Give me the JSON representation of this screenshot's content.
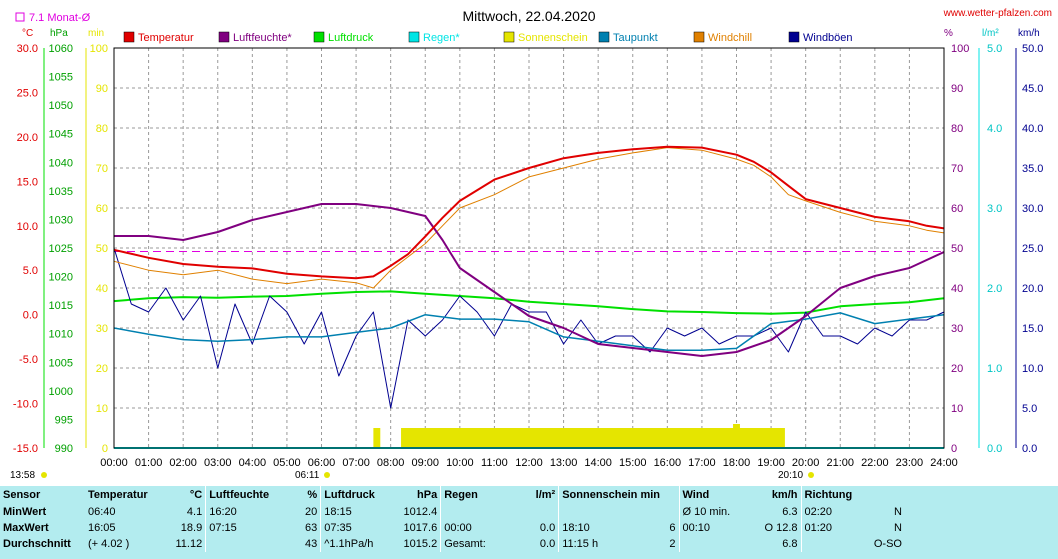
{
  "header": {
    "title": "Mittwoch, 22.04.2020",
    "site": "www.wetter-pfalzen.com",
    "month_avg_label": "7.1 Monat-Ø",
    "unit_temp": "°C",
    "unit_press": "hPa",
    "unit_sun": "min",
    "unit_hum": "%",
    "unit_rain": "l/m²",
    "unit_wind": "km/h"
  },
  "colors": {
    "temperature": "#e00000",
    "humidity": "#800080",
    "pressure": "#00e000",
    "rain": "#00e5e5",
    "sunshine": "#e5e500",
    "dewpoint": "#0080b0",
    "windchill": "#e08000",
    "gusts": "#000090",
    "month_avg": "#e000e0",
    "stats_bg": "#b3ecef"
  },
  "legend": [
    {
      "label": "Temperatur",
      "color": "#e00000"
    },
    {
      "label": "Luftfeuchte*",
      "color": "#800080"
    },
    {
      "label": "Luftdruck",
      "color": "#00e000"
    },
    {
      "label": "Regen*",
      "color": "#00e5e5"
    },
    {
      "label": "Sonnenschein",
      "color": "#e5e500"
    },
    {
      "label": "Taupunkt",
      "color": "#0080b0"
    },
    {
      "label": "Windchill",
      "color": "#e08000"
    },
    {
      "label": "Windböen",
      "color": "#000090"
    }
  ],
  "axes": {
    "temp_ticks": [
      "30.0",
      "25.0",
      "20.0",
      "15.0",
      "10.0",
      "5.0",
      "0.0",
      "-5.0",
      "-10.0",
      "-15.0"
    ],
    "press_ticks": [
      "1060",
      "1055",
      "1050",
      "1045",
      "1040",
      "1035",
      "1030",
      "1025",
      "1020",
      "1015",
      "1010",
      "1005",
      "1000",
      "995",
      "990"
    ],
    "sun_ticks": [
      "100",
      "90",
      "80",
      "70",
      "60",
      "50",
      "40",
      "30",
      "20",
      "10",
      "0"
    ],
    "hum_ticks": [
      "100",
      "90",
      "80",
      "70",
      "60",
      "50",
      "40",
      "30",
      "20",
      "10",
      "0"
    ],
    "rain_ticks": [
      "5.0",
      "4.0",
      "3.0",
      "2.0",
      "1.0",
      "0.0"
    ],
    "wind_ticks": [
      "50.0",
      "45.0",
      "40.0",
      "35.0",
      "30.0",
      "25.0",
      "20.0",
      "15.0",
      "10.0",
      "5.0",
      "0.0"
    ],
    "time_ticks": [
      "00:00",
      "01:00",
      "02:00",
      "03:00",
      "04:00",
      "05:00",
      "06:00",
      "07:00",
      "08:00",
      "09:00",
      "10:00",
      "11:00",
      "12:00",
      "13:00",
      "14:00",
      "15:00",
      "16:00",
      "17:00",
      "18:00",
      "19:00",
      "20:00",
      "21:00",
      "22:00",
      "23:00",
      "24:00"
    ],
    "sunrise": "06:11",
    "sunset": "20:10",
    "updated": "13:58"
  },
  "chart_data": {
    "type": "line",
    "title": "Mittwoch, 22.04.2020",
    "x_unit": "hours",
    "xlim": [
      0,
      24
    ],
    "temp_ylim": [
      -15,
      30
    ],
    "press_ylim": [
      990,
      1060
    ],
    "hum_ylim": [
      0,
      100
    ],
    "rain_ylim": [
      0,
      5
    ],
    "wind_ylim": [
      0,
      50
    ],
    "month_avg_temp": 7.1,
    "series": [
      {
        "name": "Temperatur",
        "axis": "temp",
        "x": [
          0,
          1,
          2,
          3,
          4,
          5,
          6,
          7,
          7.5,
          8,
          8.5,
          9,
          9.5,
          10,
          11,
          12,
          13,
          14,
          15,
          16,
          17,
          18,
          18.5,
          19,
          19.5,
          20,
          21,
          22,
          23,
          23.5,
          24
        ],
        "y": [
          7.3,
          6.4,
          5.7,
          5.4,
          5.2,
          4.6,
          4.3,
          4.1,
          4.3,
          5.5,
          6.8,
          8.8,
          10.9,
          12.8,
          15.2,
          16.5,
          17.6,
          18.2,
          18.6,
          18.9,
          18.8,
          18.0,
          17.2,
          16.0,
          14.5,
          13.0,
          12.0,
          11.0,
          10.5,
          10.0,
          9.7
        ]
      },
      {
        "name": "Windchill",
        "axis": "temp",
        "x": [
          0,
          1,
          2,
          3,
          4,
          5,
          6,
          7,
          7.5,
          8,
          8.5,
          9,
          9.5,
          10,
          11,
          12,
          13,
          14,
          15,
          16,
          17,
          18,
          18.5,
          19,
          19.5,
          20,
          21,
          22,
          23,
          23.5,
          24
        ],
        "y": [
          6.0,
          5.0,
          4.5,
          5.0,
          4.0,
          3.5,
          4.0,
          3.6,
          3.0,
          5.0,
          6.5,
          8.0,
          10.0,
          12.0,
          13.5,
          15.5,
          16.5,
          17.5,
          18.2,
          18.8,
          18.5,
          17.5,
          16.8,
          15.5,
          13.5,
          12.8,
          11.5,
          10.5,
          10.0,
          9.5,
          9.2
        ]
      },
      {
        "name": "Taupunkt",
        "axis": "temp",
        "x": [
          0,
          1,
          2,
          3,
          4,
          5,
          6,
          7,
          8,
          9,
          10,
          11,
          12,
          13,
          14,
          15,
          16,
          17,
          18,
          19,
          20,
          21,
          22,
          23,
          24
        ],
        "y": [
          -1.5,
          -2.2,
          -2.8,
          -3.0,
          -2.8,
          -2.5,
          -2.5,
          -2.0,
          -1.5,
          0.0,
          -0.5,
          -0.5,
          -0.8,
          -2.5,
          -3.0,
          -3.5,
          -4.0,
          -4.0,
          -3.8,
          -1.0,
          -0.5,
          0.2,
          -1.0,
          -0.5,
          0.0
        ]
      },
      {
        "name": "Luftfeuchte*",
        "axis": "hum",
        "x": [
          0,
          1,
          2,
          3,
          4,
          5,
          6,
          7,
          8,
          8.5,
          9,
          9.5,
          10,
          11,
          12,
          13,
          14,
          15,
          16,
          17,
          18,
          19,
          20,
          21,
          22,
          23,
          24
        ],
        "y": [
          53,
          53,
          52,
          54,
          57,
          59,
          61,
          61,
          60,
          59,
          58,
          52,
          45,
          39,
          33,
          30,
          26,
          25,
          24,
          23,
          24,
          27,
          33,
          40,
          43,
          45,
          49
        ]
      },
      {
        "name": "Luftdruck",
        "axis": "press",
        "x": [
          0,
          1,
          2,
          3,
          4,
          5,
          6,
          7,
          8,
          9,
          10,
          11,
          12,
          13,
          14,
          15,
          16,
          17,
          18,
          19,
          20,
          21,
          22,
          23,
          24
        ],
        "y": [
          1015.7,
          1016.2,
          1016.4,
          1016.3,
          1016.5,
          1016.6,
          1017.0,
          1017.3,
          1017.4,
          1017.0,
          1016.6,
          1016.2,
          1015.6,
          1015.2,
          1014.8,
          1014.3,
          1013.9,
          1013.8,
          1013.6,
          1013.5,
          1013.7,
          1014.8,
          1015.2,
          1015.5,
          1016.2
        ]
      },
      {
        "name": "Windböen",
        "axis": "wind",
        "x": [
          0,
          0.5,
          1,
          1.5,
          2,
          2.5,
          3,
          3.5,
          4,
          4.5,
          5,
          5.5,
          6,
          6.5,
          7,
          7.5,
          8,
          8.5,
          9,
          9.5,
          10,
          10.5,
          11,
          11.5,
          12,
          12.5,
          13,
          13.5,
          14,
          14.5,
          15,
          15.5,
          16,
          16.5,
          17,
          17.5,
          18,
          18.5,
          19,
          19.5,
          20,
          20.5,
          21,
          21.5,
          22,
          22.5,
          23,
          23.5,
          24
        ],
        "y": [
          25,
          18,
          17,
          20,
          16,
          19,
          10,
          18,
          13,
          19,
          17,
          13,
          17,
          9,
          14,
          17,
          5,
          16,
          14,
          16,
          19,
          17,
          14,
          18,
          17,
          17,
          13,
          16,
          13,
          14,
          14,
          12,
          15,
          14,
          15,
          13,
          14,
          14,
          15,
          12,
          17,
          14,
          14,
          13,
          15,
          14,
          16,
          16,
          17
        ]
      },
      {
        "name": "Sonnenschein",
        "axis": "sun",
        "bars": [
          [
            7.5,
            7.7,
            5
          ],
          [
            8.3,
            19.4,
            5
          ],
          [
            17.9,
            18.1,
            6
          ]
        ]
      },
      {
        "name": "Regen*",
        "axis": "rain",
        "x": [
          0,
          24
        ],
        "y": [
          0,
          0
        ]
      }
    ]
  },
  "stats": {
    "headers": [
      "Sensor",
      "Temperatur",
      "°C",
      "Luftfeuchte",
      "%",
      "Luftdruck",
      "hPa",
      "Regen",
      "l/m²",
      "Sonnenschein min",
      "",
      "Wind",
      "km/h",
      "Richtung",
      ""
    ],
    "rows": [
      [
        "MinWert",
        "06:40",
        "4.1",
        "16:20",
        "20",
        "18:15",
        "1012.4",
        "",
        "",
        "",
        "",
        "Ø 10 min.",
        "6.3",
        "02:20",
        "N"
      ],
      [
        "MaxWert",
        "16:05",
        "18.9",
        "07:15",
        "63",
        "07:35",
        "1017.6",
        "00:00",
        "0.0",
        "18:10",
        "6",
        "00:10",
        "O 12.8",
        "01:20",
        "N"
      ],
      [
        "Durchschnitt",
        "(+ 4.02 )",
        "11.12",
        "",
        "43",
        "^1.1hPa/h",
        "1015.2",
        "Gesamt:",
        "0.0",
        "11:15 h",
        "2",
        "",
        "6.8",
        "",
        "O-SO"
      ]
    ]
  }
}
